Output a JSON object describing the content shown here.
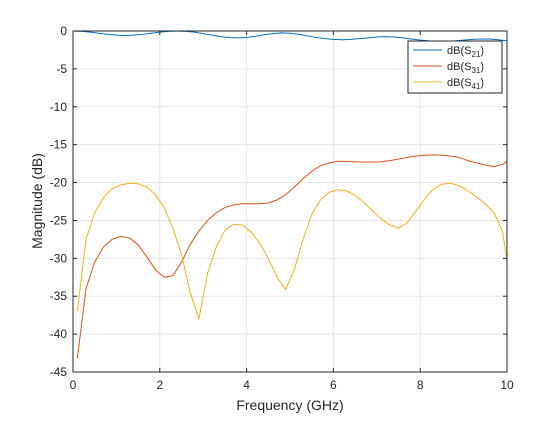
{
  "chart_data": {
    "type": "line",
    "xlabel": "Frequency (GHz)",
    "ylabel": "Magnitude (dB)",
    "xlim": [
      0,
      10
    ],
    "ylim": [
      -45,
      0
    ],
    "xticks": [
      0,
      2,
      4,
      6,
      8,
      10
    ],
    "yticks": [
      0,
      -5,
      -10,
      -15,
      -20,
      -25,
      -30,
      -35,
      -40,
      -45
    ],
    "xtick_labels": [
      "0",
      "2",
      "4",
      "6",
      "8",
      "10"
    ],
    "ytick_labels": [
      "0",
      "-5",
      "-10",
      "-15",
      "-20",
      "-25",
      "-30",
      "-35",
      "-40",
      "-45"
    ],
    "grid": true,
    "legend_position": "top-right",
    "series": [
      {
        "name": "dB(S21)",
        "legend_main": "dB(S",
        "legend_sub": "21",
        "legend_close": ")",
        "color": "#0072BD",
        "x": [
          0.0,
          0.2,
          0.4,
          0.6,
          0.8,
          1.0,
          1.2,
          1.4,
          1.6,
          1.8,
          2.0,
          2.2,
          2.4,
          2.6,
          2.8,
          3.0,
          3.2,
          3.4,
          3.6,
          3.8,
          4.0,
          4.2,
          4.4,
          4.6,
          4.8,
          5.0,
          5.2,
          5.4,
          5.6,
          5.8,
          6.0,
          6.2,
          6.4,
          6.6,
          6.8,
          7.0,
          7.2,
          7.4,
          7.6,
          7.8,
          8.0,
          8.2,
          8.4,
          8.6,
          8.8,
          9.0,
          9.2,
          9.4,
          9.6,
          9.8,
          10.0
        ],
        "y": [
          0.0,
          -0.05,
          -0.15,
          -0.3,
          -0.45,
          -0.55,
          -0.6,
          -0.55,
          -0.45,
          -0.3,
          -0.15,
          -0.05,
          0.0,
          -0.05,
          -0.15,
          -0.35,
          -0.55,
          -0.75,
          -0.85,
          -0.9,
          -0.85,
          -0.7,
          -0.5,
          -0.35,
          -0.25,
          -0.3,
          -0.45,
          -0.65,
          -0.85,
          -1.0,
          -1.1,
          -1.15,
          -1.1,
          -1.0,
          -0.9,
          -0.8,
          -0.75,
          -0.8,
          -0.9,
          -1.05,
          -1.2,
          -1.3,
          -1.35,
          -1.35,
          -1.3,
          -1.2,
          -1.1,
          -1.05,
          -1.05,
          -1.15,
          -1.3
        ]
      },
      {
        "name": "dB(S31)",
        "legend_main": "dB(S",
        "legend_sub": "31",
        "legend_close": ")",
        "color": "#D95319",
        "x": [
          0.1,
          0.3,
          0.5,
          0.7,
          0.9,
          1.1,
          1.3,
          1.5,
          1.7,
          1.9,
          2.1,
          2.3,
          2.5,
          2.7,
          2.9,
          3.1,
          3.3,
          3.5,
          3.7,
          3.9,
          4.1,
          4.3,
          4.5,
          4.7,
          4.9,
          5.1,
          5.3,
          5.5,
          5.7,
          5.9,
          6.1,
          6.3,
          6.5,
          6.7,
          6.9,
          7.1,
          7.3,
          7.5,
          7.7,
          7.9,
          8.1,
          8.3,
          8.5,
          8.7,
          8.9,
          9.1,
          9.3,
          9.5,
          9.7,
          9.9,
          10.0
        ],
        "y": [
          -43.2,
          -34.0,
          -30.5,
          -28.5,
          -27.5,
          -27.1,
          -27.3,
          -28.2,
          -29.8,
          -31.5,
          -32.5,
          -32.3,
          -30.5,
          -28.2,
          -26.4,
          -25.0,
          -24.0,
          -23.3,
          -22.95,
          -22.8,
          -22.8,
          -22.8,
          -22.7,
          -22.3,
          -21.6,
          -20.6,
          -19.5,
          -18.5,
          -17.8,
          -17.4,
          -17.2,
          -17.2,
          -17.25,
          -17.3,
          -17.3,
          -17.25,
          -17.1,
          -16.9,
          -16.7,
          -16.5,
          -16.4,
          -16.35,
          -16.4,
          -16.5,
          -16.7,
          -17.1,
          -17.4,
          -17.7,
          -17.9,
          -17.6,
          -17.2
        ]
      },
      {
        "name": "dB(S41)",
        "legend_main": "dB(S",
        "legend_sub": "41",
        "legend_close": ")",
        "color": "#EDB120",
        "x": [
          0.1,
          0.3,
          0.5,
          0.7,
          0.9,
          1.1,
          1.3,
          1.5,
          1.7,
          1.9,
          2.1,
          2.3,
          2.5,
          2.7,
          2.9,
          3.1,
          3.3,
          3.5,
          3.7,
          3.9,
          4.1,
          4.3,
          4.5,
          4.7,
          4.9,
          5.1,
          5.3,
          5.5,
          5.7,
          5.9,
          6.1,
          6.3,
          6.5,
          6.7,
          6.9,
          7.1,
          7.3,
          7.5,
          7.7,
          7.9,
          8.1,
          8.3,
          8.5,
          8.7,
          8.9,
          9.1,
          9.3,
          9.5,
          9.7,
          9.9,
          10.0
        ],
        "y": [
          -37.0,
          -27.5,
          -24.0,
          -22.0,
          -20.8,
          -20.3,
          -20.1,
          -20.15,
          -20.6,
          -21.6,
          -23.3,
          -26.0,
          -29.5,
          -34.5,
          -38.0,
          -32.0,
          -28.5,
          -26.3,
          -25.5,
          -25.6,
          -26.5,
          -28.0,
          -30.0,
          -32.5,
          -34.1,
          -31.5,
          -27.5,
          -24.2,
          -22.3,
          -21.3,
          -20.95,
          -21.1,
          -21.7,
          -22.6,
          -23.7,
          -24.8,
          -25.6,
          -26.0,
          -25.3,
          -23.8,
          -22.2,
          -20.9,
          -20.2,
          -20.1,
          -20.4,
          -21.1,
          -21.9,
          -22.8,
          -24.0,
          -26.5,
          -30.2
        ]
      }
    ]
  }
}
